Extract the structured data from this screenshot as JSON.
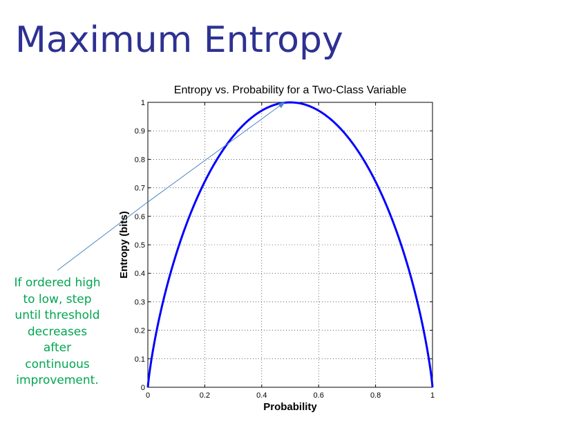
{
  "slide": {
    "title": "Maximum Entropy",
    "annotation": "If ordered high\nto low, step\nuntil threshold\ndecreases\nafter\ncontinuous\nimprovement."
  },
  "colors": {
    "title": "#2e3192",
    "annotation": "#00a651",
    "series": "#0000ff",
    "arrow": "#4a86c5"
  },
  "chart_data": {
    "type": "line",
    "title": "Entropy vs. Probability for a Two-Class Variable",
    "xlabel": "Probability",
    "ylabel": "Entropy (bits)",
    "xlim": [
      0,
      1
    ],
    "ylim": [
      0,
      1
    ],
    "grid": true,
    "xticks": [
      "0",
      "0.2",
      "0.4",
      "0.6",
      "0.8",
      "1"
    ],
    "yticks": [
      "0",
      "0.1",
      "0.2",
      "0.3",
      "0.4",
      "0.5",
      "0.6",
      "0.7",
      "0.8",
      "0.9",
      "1"
    ],
    "series": [
      {
        "x": [
          0.001,
          0.01,
          0.02,
          0.05,
          0.1,
          0.15,
          0.2,
          0.25,
          0.3,
          0.35,
          0.4,
          0.45,
          0.5,
          0.55,
          0.6,
          0.65,
          0.7,
          0.75,
          0.8,
          0.85,
          0.9,
          0.95,
          0.98,
          0.99,
          0.999
        ],
        "y": [
          0.0114,
          0.0808,
          0.1414,
          0.2864,
          0.469,
          0.6098,
          0.7219,
          0.8113,
          0.8813,
          0.9341,
          0.971,
          0.9928,
          1.0,
          0.9928,
          0.971,
          0.9341,
          0.8813,
          0.8113,
          0.7219,
          0.6098,
          0.469,
          0.2864,
          0.1414,
          0.0808,
          0.0114
        ]
      }
    ],
    "annotation_arrow": {
      "from": [
        0.0,
        0.65
      ],
      "to": [
        0.48,
        1.0
      ]
    }
  }
}
